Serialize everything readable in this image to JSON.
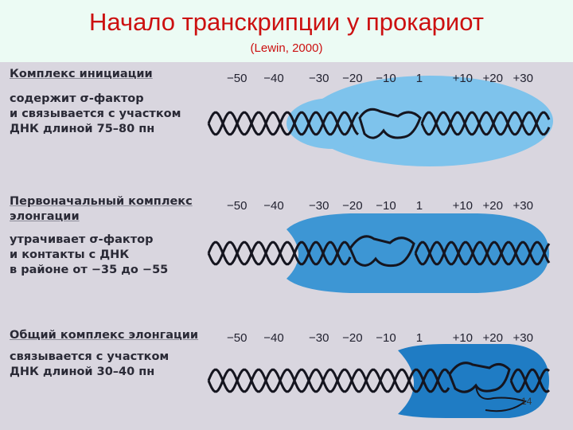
{
  "slide": {
    "title": "Начало транскрипции у прокариот",
    "subtitle": "(Lewin, 2000)",
    "page_number": "14"
  },
  "panels": [
    {
      "heading": "Комплекс инициации",
      "lines": [
        "содержит σ-фактор",
        "и связывается с участком",
        "ДНК длиной 75–80 пн"
      ],
      "coords_left": [
        "−50",
        "−40"
      ],
      "coords_right": [
        "−30",
        "−20",
        "−10",
        "1",
        "+10",
        "+20",
        "+30"
      ]
    },
    {
      "heading": "Первоначальный комплекс элонгации",
      "lines": [
        "утрачивает σ-фактор",
        "и контакты с ДНК",
        "в районе от −35 до −55"
      ],
      "coords_left": [
        "−50",
        "−40"
      ],
      "coords_right": [
        "−30",
        "−20",
        "−10",
        "1",
        "+10",
        "+20",
        "+30"
      ]
    },
    {
      "heading": "Общий комплекс элонгации",
      "lines": [
        "связывается с участком",
        "ДНК длиной 30–40 пн"
      ],
      "coords_left": [
        "−50",
        "−40"
      ],
      "coords_right": [
        "−30",
        "−20",
        "−10",
        "1",
        "+10",
        "+20",
        "+30"
      ]
    }
  ],
  "colors": {
    "title": "#cc1010",
    "light_blue": "#7ec3ec",
    "mid_blue": "#3d96d4",
    "dark_blue": "#1f7cc4"
  }
}
